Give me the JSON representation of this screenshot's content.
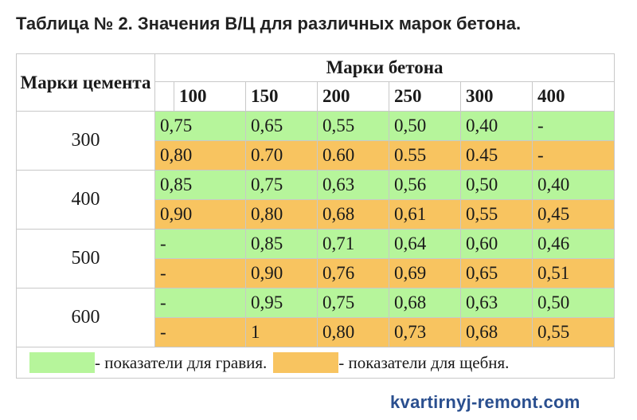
{
  "title": "Таблица № 2. Значения В/Ц для различных марок бетона.",
  "header": {
    "cement_brands": "Марки цемента",
    "concrete_brands": "Марки бетона",
    "grades": [
      "100",
      "150",
      "200",
      "250",
      "300",
      "400"
    ]
  },
  "groups": [
    {
      "cement": "300",
      "gravel": [
        "0,75",
        "0,65",
        "0,55",
        "0,50",
        "0,40",
        "-"
      ],
      "crushed": [
        "0,80",
        "0.70",
        "0.60",
        "0.55",
        "0.45",
        "-"
      ]
    },
    {
      "cement": "400",
      "gravel": [
        "0,85",
        "0,75",
        "0,63",
        "0,56",
        "0,50",
        "0,40"
      ],
      "crushed": [
        "0,90",
        "0,80",
        "0,68",
        "0,61",
        "0,55",
        "0,45"
      ]
    },
    {
      "cement": "500",
      "gravel": [
        "-",
        "0,85",
        "0,71",
        "0,64",
        "0,60",
        "0,46"
      ],
      "crushed": [
        "-",
        "0,90",
        "0,76",
        "0,69",
        "0,65",
        "0,51"
      ]
    },
    {
      "cement": "600",
      "gravel": [
        "-",
        "0,95",
        "0,75",
        "0,68",
        "0,63",
        "0,50"
      ],
      "crushed": [
        "-",
        "1",
        "0,80",
        "0,73",
        "0,68",
        "0,55"
      ]
    }
  ],
  "legend": {
    "gravel_text": "- показатели для гравия.",
    "crushed_text": "- показатели для щебня."
  },
  "colors": {
    "gravel": "#b6f59b",
    "crushed": "#f8c460",
    "watermark": "#2a4f8f"
  },
  "watermark": "kvartirnyj-remont.com"
}
